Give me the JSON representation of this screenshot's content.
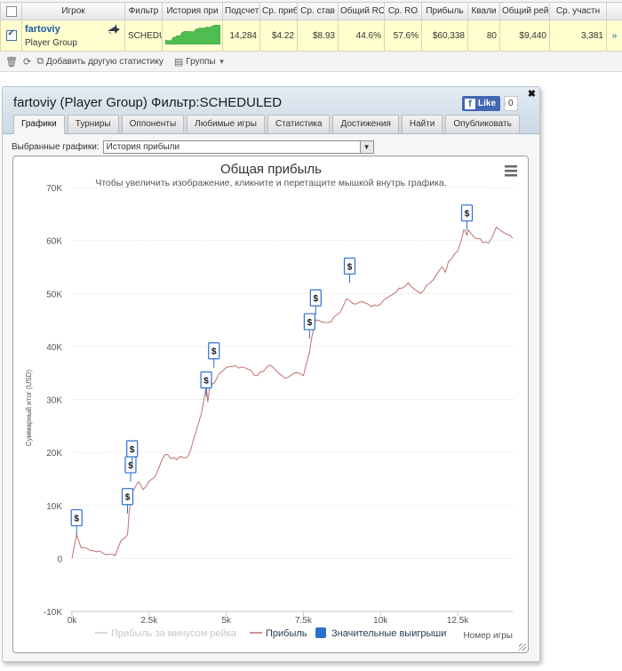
{
  "stats_table": {
    "headers": [
      "Игрок",
      "Фильтр",
      "История при",
      "Подсчет",
      "Ср. приб",
      "Ср. став",
      "Общий RO",
      "Ср. RO",
      "Прибыль",
      "Квали",
      "Общий рей",
      "Ср. участн"
    ],
    "row": {
      "checked": true,
      "player_name": "fartoviy",
      "player_group": "Player Group",
      "filter": "SCHEDU",
      "count": "14,284",
      "avg_profit": "$4.22",
      "avg_stake": "$8.93",
      "total_roi": "44.6%",
      "avg_roi": "57.6%",
      "profit": "$60,338",
      "quali": "80",
      "total_rake": "$9,440",
      "avg_entrants": "3,381",
      "more": "»"
    }
  },
  "toolbar": {
    "add_stats_label": "Добавить другую статистику",
    "groups_label": "Группы"
  },
  "window": {
    "title": "fartoviy (Player Group) Фильтр:SCHEDULED",
    "fb_like_label": "Like",
    "fb_like_count": "0",
    "tabs": [
      "Графики",
      "Турниры",
      "Оппоненты",
      "Любимые игры",
      "Статистика",
      "Достижения",
      "Найти",
      "Опубликовать"
    ],
    "active_tab": "Графики",
    "chart_select_label": "Выбранные графики:",
    "chart_select_value": "История прибыли"
  },
  "chart_data": {
    "type": "line",
    "title": "Общая прибыль",
    "subtitle": "Чтобы увеличить изображение, кликните и перетащите мышкой внутрь графика.",
    "xlabel": "Номер игры",
    "ylabel": "Суммарный итог (USD)",
    "xlim": [
      0,
      14284
    ],
    "ylim": [
      -10000,
      70000
    ],
    "x_ticks": [
      0,
      2500,
      5000,
      7500,
      10000,
      12500
    ],
    "x_tick_labels": [
      "0k",
      "2.5k",
      "5k",
      "7.5k",
      "10k",
      "12.5k"
    ],
    "y_ticks": [
      -10000,
      0,
      10000,
      20000,
      30000,
      40000,
      50000,
      60000,
      70000
    ],
    "y_tick_labels": [
      "-10K",
      "0",
      "10K",
      "20K",
      "30K",
      "40K",
      "50K",
      "60K",
      "70K"
    ],
    "grid": "y-dotted",
    "legend_position": "bottom",
    "series": [
      {
        "name": "Прибыль за минусом рейка",
        "color": "#cccccc",
        "visible": false,
        "x": [],
        "y": []
      },
      {
        "name": "Прибыль",
        "color": "#c07070",
        "x": [
          0,
          150,
          300,
          600,
          1000,
          1300,
          1400,
          1600,
          1800,
          1850,
          1950,
          2150,
          2300,
          2600,
          2700,
          3000,
          3300,
          3700,
          3850,
          4200,
          4350,
          4400,
          4500,
          4600,
          4700,
          4800,
          5000,
          5200,
          5600,
          6000,
          6400,
          6600,
          6900,
          7200,
          7500,
          7700,
          7800,
          7900,
          8300,
          8700,
          8900,
          9200,
          9400,
          9700,
          10000,
          10300,
          10600,
          10900,
          11300,
          11700,
          12000,
          12100,
          12200,
          12500,
          12700,
          12800,
          12850,
          13050,
          13500,
          13750,
          14000,
          14284
        ],
        "y": [
          0,
          4500,
          2000,
          1500,
          1000,
          800,
          500,
          3500,
          4500,
          8500,
          12500,
          14500,
          13000,
          15000,
          15500,
          19500,
          19000,
          19000,
          20500,
          27500,
          32500,
          29500,
          33500,
          33000,
          34000,
          35000,
          36000,
          36200,
          36000,
          34500,
          36500,
          35500,
          34000,
          35000,
          34500,
          39000,
          42500,
          45000,
          44500,
          46500,
          49000,
          48000,
          48500,
          47500,
          48000,
          49500,
          51000,
          52000,
          50000,
          52500,
          55000,
          54000,
          56000,
          58000,
          62000,
          61000,
          62000,
          60500,
          59500,
          62500,
          61500,
          60400
        ]
      }
    ],
    "significant_wins": {
      "name": "Значительные выигрыши",
      "color": "#2c6fce",
      "label": "$",
      "x": [
        150,
        1800,
        1900,
        1950,
        4350,
        4600,
        7700,
        7900,
        9000,
        12800
      ],
      "y": [
        4500,
        8500,
        14500,
        17500,
        30500,
        36000,
        41500,
        46000,
        52000,
        62000
      ]
    }
  }
}
